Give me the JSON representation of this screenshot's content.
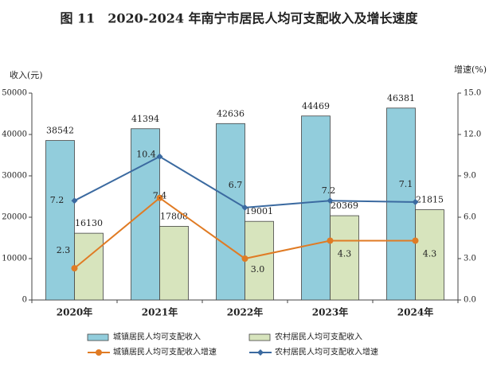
{
  "chart_data": {
    "type": "bar-line",
    "title": "图 11　2020-2024 年南宁市居民人均可支配收入及增长速度",
    "y_label": "收入(元)",
    "y2_label": "增速(%)",
    "categories": [
      "2020年",
      "2021年",
      "2022年",
      "2023年",
      "2024年"
    ],
    "ylim": [
      0,
      50000
    ],
    "yticks": [
      0,
      10000,
      20000,
      30000,
      40000,
      50000
    ],
    "y2lim": [
      0,
      15
    ],
    "y2ticks": [
      {
        "value": 0,
        "label": "0.0"
      },
      {
        "value": 3,
        "label": "3.0"
      },
      {
        "value": 6,
        "label": "6.0"
      },
      {
        "value": 9,
        "label": "9.0"
      },
      {
        "value": 12,
        "label": "12.0"
      },
      {
        "value": 15,
        "label": "15.0"
      }
    ],
    "series": [
      {
        "name": "城镇居民人均可支配收入",
        "kind": "bar",
        "color": "#92cddc",
        "values": [
          38542,
          41394,
          42636,
          44469,
          46381
        ]
      },
      {
        "name": "农村居民人均可支配收入",
        "kind": "bar",
        "color": "#d7e4bd",
        "values": [
          16130,
          17808,
          19001,
          20369,
          21815
        ]
      },
      {
        "name": "城镇居民人均可支配收入增速",
        "kind": "line",
        "axis": "y2",
        "marker": "circle",
        "color": "#e07b24",
        "values": [
          2.3,
          7.4,
          3,
          4.3,
          4.3
        ],
        "value_labels": [
          "2.3",
          "7.4",
          "3.0",
          "4.3",
          "4.3"
        ]
      },
      {
        "name": "农村居民人均可支配收入增速",
        "kind": "line",
        "axis": "y2",
        "marker": "diamond",
        "color": "#3b6aa0",
        "values": [
          7.2,
          10.4,
          6.7,
          7.2,
          7.1
        ]
      }
    ]
  }
}
